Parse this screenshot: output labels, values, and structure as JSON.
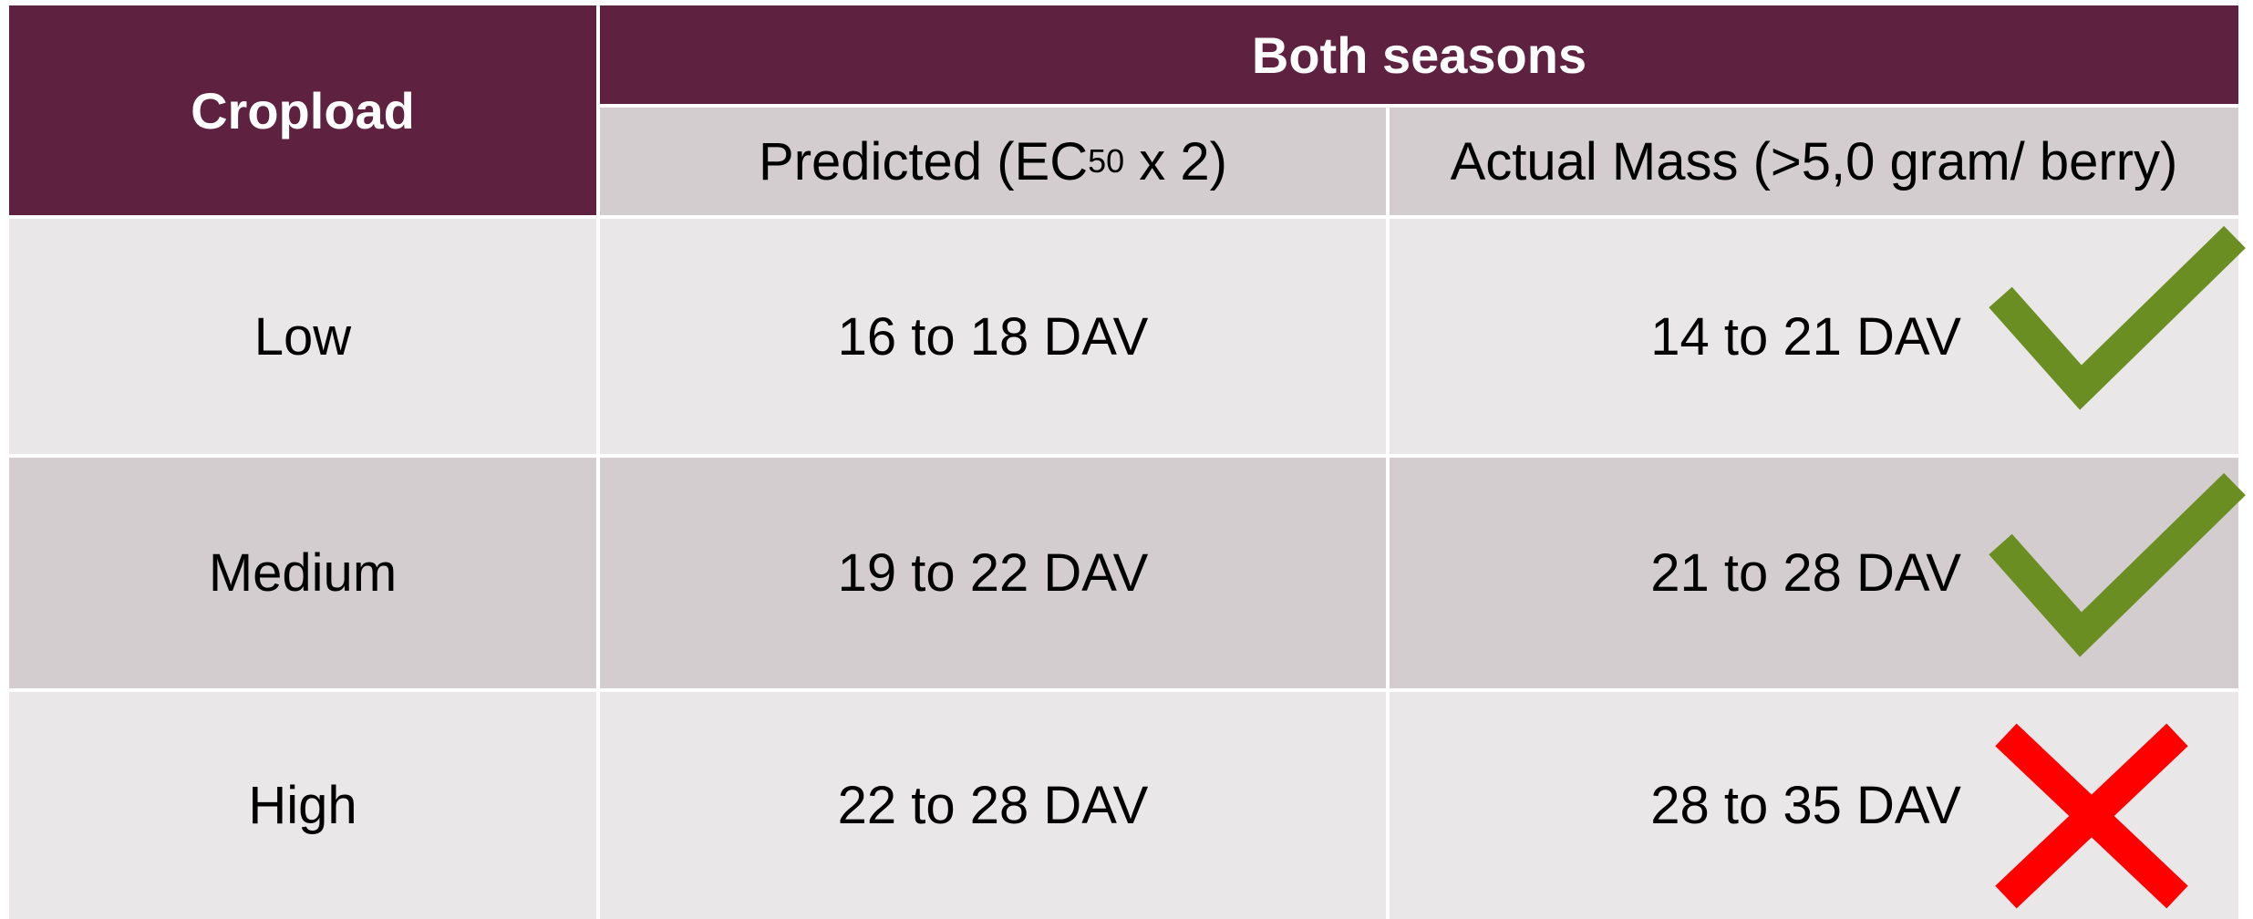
{
  "table": {
    "header": {
      "corner": "Cropload",
      "group": "Both seasons",
      "predicted": [
        "Predicted (EC",
        "50",
        " x 2)"
      ],
      "actual": "Actual Mass (>5,0 gram/ berry)"
    },
    "rows": [
      [
        "Low",
        "16 to 18 DAV",
        "14 to 21 DAV"
      ],
      [
        "Medium",
        "19 to 22 DAV",
        "21 to 28 DAV"
      ],
      [
        "High",
        "22 to 28 DAV",
        "28 to 35 DAV"
      ]
    ]
  }
}
